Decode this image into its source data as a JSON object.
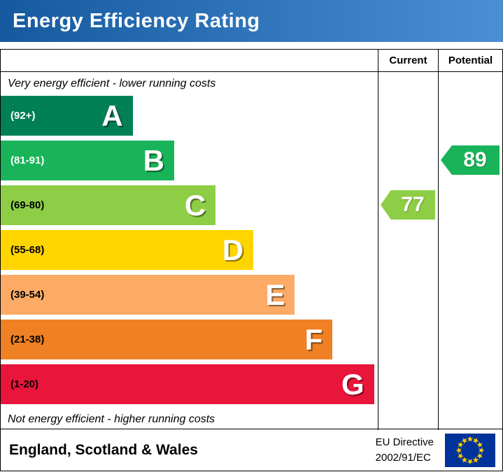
{
  "title": "Energy Efficiency Rating",
  "title_gradient": [
    "#15599f",
    "#4a8fd4"
  ],
  "header": {
    "current": "Current",
    "potential": "Potential"
  },
  "top_note": "Very energy efficient - lower running costs",
  "bottom_note": "Not energy efficient - higher running costs",
  "bands": [
    {
      "range": "(92+)",
      "letter": "A",
      "color": "#008054",
      "text_color": "#ffffff",
      "width_pct": 35
    },
    {
      "range": "(81-91)",
      "letter": "B",
      "color": "#19b459",
      "text_color": "#ffffff",
      "width_pct": 46
    },
    {
      "range": "(69-80)",
      "letter": "C",
      "color": "#8dce46",
      "text_color": "#000000",
      "width_pct": 57
    },
    {
      "range": "(55-68)",
      "letter": "D",
      "color": "#ffd500",
      "text_color": "#000000",
      "width_pct": 67
    },
    {
      "range": "(39-54)",
      "letter": "E",
      "color": "#fcaa65",
      "text_color": "#000000",
      "width_pct": 78
    },
    {
      "range": "(21-38)",
      "letter": "F",
      "color": "#ef8023",
      "text_color": "#000000",
      "width_pct": 88
    },
    {
      "range": "(1-20)",
      "letter": "G",
      "color": "#e9153b",
      "text_color": "#000000",
      "width_pct": 99
    }
  ],
  "current": {
    "value": "77",
    "color": "#8dce46",
    "band_index": 2
  },
  "potential": {
    "value": "89",
    "color": "#19b459",
    "band_index": 1
  },
  "footer": {
    "region": "England, Scotland & Wales",
    "directive_line1": "EU Directive",
    "directive_line2": "2002/91/EC",
    "flag_bg": "#003399",
    "flag_star": "#ffcc00"
  },
  "chart_data": {
    "type": "bar",
    "title": "Energy Efficiency Rating",
    "orientation": "horizontal",
    "categories": [
      "A (92+)",
      "B (81-91)",
      "C (69-80)",
      "D (55-68)",
      "E (39-54)",
      "F (21-38)",
      "G (1-20)"
    ],
    "values": [
      35,
      46,
      57,
      67,
      78,
      88,
      99
    ],
    "value_unit": "bar length, % of plot width (fixed EPC scale bands)",
    "band_score_ranges": [
      [
        92,
        100
      ],
      [
        81,
        91
      ],
      [
        69,
        80
      ],
      [
        55,
        68
      ],
      [
        39,
        54
      ],
      [
        21,
        38
      ],
      [
        1,
        20
      ]
    ],
    "colors": [
      "#008054",
      "#19b459",
      "#8dce46",
      "#ffd500",
      "#fcaa65",
      "#ef8023",
      "#e9153b"
    ],
    "markers": [
      {
        "name": "Current",
        "value": 77,
        "band": "C",
        "color": "#8dce46"
      },
      {
        "name": "Potential",
        "value": 89,
        "band": "B",
        "color": "#19b459"
      }
    ],
    "annotations": [
      "Very energy efficient - lower running costs",
      "Not energy efficient - higher running costs"
    ],
    "xlabel": "",
    "ylabel": "",
    "legend": false,
    "grid": false
  }
}
